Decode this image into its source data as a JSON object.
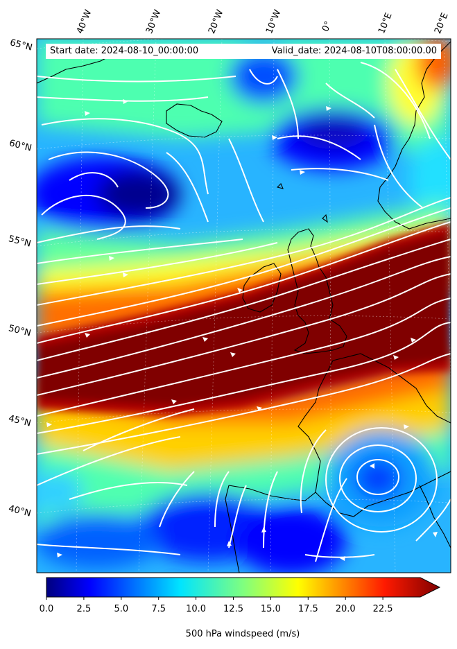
{
  "map": {
    "start_date": "Start date: 2024-08-10_00:00:00",
    "valid_date": "Valid_date: 2024-08-10T08:00:00.00",
    "longitude_labels": [
      "40°W",
      "30°W",
      "20°W",
      "10°W",
      "0°",
      "10°E",
      "20°E"
    ],
    "latitude_labels": [
      "65°N",
      "60°N",
      "55°N",
      "50°N",
      "45°N",
      "40°N"
    ],
    "field": "500 hPa windspeed",
    "land_features": [
      "Iceland",
      "Greenland",
      "Scandinavia",
      "British Isles",
      "France",
      "Iberian Peninsula",
      "Italy"
    ]
  },
  "colorbar": {
    "label": "500 hPa windspeed (m/s)",
    "ticks": [
      "0.0",
      "2.5",
      "5.0",
      "7.5",
      "10.0",
      "12.5",
      "15.0",
      "17.5",
      "20.0",
      "22.5"
    ],
    "min": 0,
    "max": 25,
    "extend": "max",
    "colormap": "jet"
  },
  "colors": {
    "jet_core": "#800000",
    "calm": "#00008f",
    "streamline": "#ffffff",
    "coastline": "#000000"
  }
}
